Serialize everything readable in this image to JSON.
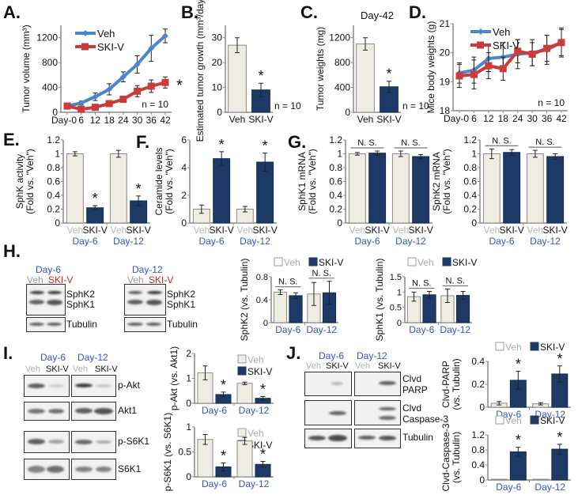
{
  "panels": {
    "A": "A.",
    "B": "B.",
    "C": "C.",
    "D": "D.",
    "E": "E.",
    "F": "F.",
    "G": "G.",
    "H": "H.",
    "I": "I.",
    "J": "J."
  },
  "colors": {
    "veh_fill": "#efede1",
    "veh_stroke": "#8a8a8a",
    "ski_fill": "#1d3a67",
    "veh_line": "#4a86c8",
    "ski_line": "#cc3b3b",
    "day_label": "#3355bb"
  },
  "blots": {
    "H": {
      "day6": "Day-6",
      "day12": "Day-12",
      "veh": "Veh",
      "ski": "SKI-V",
      "proteins": [
        "SphK2",
        "SphK1"
      ],
      "loading": "Tubulin"
    },
    "I": {
      "day6": "Day-6",
      "day12": "Day-12",
      "veh": "Veh",
      "ski": "SKI-V",
      "proteins": [
        "p-Akt",
        "Akt1",
        "p-S6K1",
        "S6K1"
      ]
    },
    "J": {
      "day6": "Day-6",
      "day12": "Day-12",
      "veh": "Veh",
      "ski": "SKI-V",
      "proteins": [
        "Clvd\nPARP",
        "Clvd\nCaspase-3",
        "Tubulin"
      ]
    }
  },
  "chart_data": [
    {
      "id": "A",
      "type": "line",
      "ylabel": "Tumor volume (mm³)",
      "x": [
        "Day-0",
        "6",
        "12",
        "18",
        "24",
        "30",
        "36",
        "42"
      ],
      "ylim": [
        0,
        1400
      ],
      "yticks": [
        0,
        400,
        800,
        1200
      ],
      "series": [
        {
          "name": "Veh",
          "values": [
            100,
            150,
            250,
            370,
            570,
            770,
            1030,
            1230
          ],
          "errors": [
            20,
            30,
            60,
            90,
            80,
            140,
            210,
            110
          ]
        },
        {
          "name": "SKI-V",
          "values": [
            100,
            50,
            80,
            140,
            210,
            340,
            420,
            480
          ],
          "errors": [
            20,
            30,
            40,
            40,
            50,
            90,
            100,
            90
          ]
        }
      ],
      "legend": "top-left",
      "annotation": "n = 10",
      "significance": "*"
    },
    {
      "id": "B",
      "type": "bar",
      "ylabel": "Estimated tumor growth (mm³/day)",
      "categories": [
        "Veh",
        "SKI-V"
      ],
      "values": [
        27,
        9
      ],
      "errors": [
        3,
        2.7
      ],
      "significance": [
        "",
        "*"
      ],
      "ylim": [
        0,
        35
      ],
      "yticks": [
        0,
        10,
        20,
        30
      ],
      "annotation": "n = 10"
    },
    {
      "id": "C",
      "type": "bar",
      "title": "Day-42",
      "ylabel": "Tumor weights (mg)",
      "categories": [
        "Veh",
        "SKI-V"
      ],
      "values": [
        1100,
        410
      ],
      "errors": [
        100,
        90
      ],
      "significance": [
        "",
        "*"
      ],
      "ylim": [
        0,
        1400
      ],
      "yticks": [
        0,
        400,
        800,
        1200
      ],
      "annotation": "n = 10"
    },
    {
      "id": "D",
      "type": "line",
      "ylabel": "Mice body weights (g)",
      "x": [
        "Day-0",
        "6",
        "12",
        "18",
        "24",
        "30",
        "36",
        "42"
      ],
      "ylim": [
        18,
        21
      ],
      "yticks": [
        18,
        19,
        20,
        21
      ],
      "series": [
        {
          "name": "Veh",
          "values": [
            19.3,
            19.4,
            19.8,
            19.85,
            19.95,
            20.0,
            20.1,
            20.35
          ],
          "errors": [
            0.35,
            0.45,
            0.45,
            0.5,
            0.5,
            0.45,
            0.5,
            0.5
          ]
        },
        {
          "name": "SKI-V",
          "values": [
            19.2,
            19.25,
            19.55,
            19.45,
            20.05,
            19.95,
            20.15,
            20.35
          ],
          "errors": [
            0.4,
            0.5,
            0.45,
            0.4,
            0.4,
            0.4,
            0.45,
            0.45
          ]
        }
      ],
      "legend": "top-left",
      "annotation": "n = 10"
    },
    {
      "id": "E",
      "type": "bar",
      "ylabel": "SphK activity\n(Fold vs. \"Veh\")",
      "groups": [
        "Day-6",
        "Day-12"
      ],
      "tick_labels": [
        "Veh",
        "SKI-V",
        "Veh",
        "SKI-V"
      ],
      "ylim": [
        0,
        1.2
      ],
      "yticks": [
        0,
        0.2,
        0.4,
        0.6,
        0.8,
        1,
        1.2
      ],
      "series": [
        {
          "name": "Veh",
          "values": [
            1.0,
            1.0
          ],
          "errors": [
            0.03,
            0.05
          ]
        },
        {
          "name": "SKI-V",
          "values": [
            0.22,
            0.32
          ],
          "errors": [
            0.03,
            0.07
          ]
        }
      ],
      "significance": [
        "",
        "*",
        "",
        "*"
      ]
    },
    {
      "id": "F",
      "type": "bar",
      "ylabel": "Ceramide levels\n(Fold vs. \"Veh\")",
      "groups": [
        "Day-6",
        "Day-12"
      ],
      "tick_labels": [
        "Veh",
        "SKI-V",
        "Veh",
        "SKI-V"
      ],
      "ylim": [
        0,
        6
      ],
      "yticks": [
        0,
        2,
        4,
        6
      ],
      "series": [
        {
          "name": "Veh",
          "values": [
            1.0,
            1.0
          ],
          "errors": [
            0.3,
            0.2
          ]
        },
        {
          "name": "SKI-V",
          "values": [
            4.65,
            4.4
          ],
          "errors": [
            0.5,
            0.65
          ]
        }
      ],
      "significance": [
        "",
        "*",
        "",
        "*"
      ]
    },
    {
      "id": "G1",
      "type": "bar",
      "ylabel": "SphK1 mRNA\n(Fold vs. \"Veh\")",
      "groups": [
        "Day-6",
        "Day-12"
      ],
      "tick_labels": [
        "Veh",
        "SKI-V",
        "Veh",
        "SKI-V"
      ],
      "ylim": [
        0,
        1.2
      ],
      "yticks": [
        0,
        0.2,
        0.4,
        0.6,
        0.8,
        1,
        1.2
      ],
      "series": [
        {
          "name": "Veh",
          "values": [
            1.0,
            1.0
          ],
          "errors": [
            0.02,
            0.04
          ]
        },
        {
          "name": "SKI-V",
          "values": [
            1.01,
            0.96
          ],
          "errors": [
            0.03,
            0.03
          ]
        }
      ],
      "group_annotations": [
        "N. S.",
        "N. S."
      ]
    },
    {
      "id": "G2",
      "type": "bar",
      "ylabel": "SphK2 mRNA\n(Fold vs. \"Veh\")",
      "groups": [
        "Day-6",
        "Day-12"
      ],
      "tick_labels": [
        "Veh",
        "SKI-V",
        "Veh",
        "SKI-V"
      ],
      "ylim": [
        0,
        1.2
      ],
      "yticks": [
        0,
        0.2,
        0.4,
        0.6,
        0.8,
        1,
        1.2
      ],
      "series": [
        {
          "name": "Veh",
          "values": [
            1.0,
            1.0
          ],
          "errors": [
            0.07,
            0.05
          ]
        },
        {
          "name": "SKI-V",
          "values": [
            1.02,
            0.96
          ],
          "errors": [
            0.04,
            0.04
          ]
        }
      ],
      "group_annotations": [
        "N. S.",
        "N. S."
      ]
    },
    {
      "id": "H1",
      "type": "bar",
      "ylabel": "SphK2 (vs. Tubulin)",
      "groups": [
        "Day-6",
        "Day-12"
      ],
      "ylim": [
        0,
        0.8
      ],
      "yticks": [
        0,
        0.4,
        0.8
      ],
      "legend": "top",
      "series": [
        {
          "name": "Veh",
          "values": [
            0.53,
            0.5
          ],
          "errors": [
            0.04,
            0.2
          ]
        },
        {
          "name": "SKI-V",
          "values": [
            0.47,
            0.52
          ],
          "errors": [
            0.05,
            0.2
          ]
        }
      ],
      "group_annotations": [
        "N. S.",
        "N. S."
      ]
    },
    {
      "id": "H2",
      "type": "bar",
      "ylabel": "SphK1 (vs. Tubulin)",
      "groups": [
        "Day-6",
        "Day-12"
      ],
      "ylim": [
        0,
        1.5
      ],
      "yticks": [
        0,
        0.5,
        1,
        1.5
      ],
      "legend": "top",
      "series": [
        {
          "name": "Veh",
          "values": [
            0.85,
            0.88
          ],
          "errors": [
            0.15,
            0.22
          ]
        },
        {
          "name": "SKI-V",
          "values": [
            0.91,
            0.89
          ],
          "errors": [
            0.11,
            0.13
          ]
        }
      ],
      "group_annotations": [
        "N. S.",
        "N. S."
      ]
    },
    {
      "id": "I1",
      "type": "bar",
      "ylabel": "p-Akt (vs. Akt1)",
      "groups": [
        "Day-6",
        "Day-12"
      ],
      "ylim": [
        0,
        2
      ],
      "yticks": [
        0,
        1,
        2
      ],
      "legend": "top-right",
      "series": [
        {
          "name": "Veh",
          "values": [
            1.22,
            0.8
          ],
          "errors": [
            0.28,
            0.05
          ]
        },
        {
          "name": "SKI-V",
          "values": [
            0.35,
            0.2
          ],
          "errors": [
            0.1,
            0.07
          ]
        }
      ],
      "significance": [
        "",
        "*",
        "",
        "*"
      ]
    },
    {
      "id": "I2",
      "type": "bar",
      "ylabel": "p-S6K1 (vs. S6K1)",
      "groups": [
        "Day-6",
        "Day-12"
      ],
      "ylim": [
        0,
        1
      ],
      "yticks": [
        0,
        0.5,
        1
      ],
      "legend": "top-right",
      "series": [
        {
          "name": "Veh",
          "values": [
            0.75,
            0.72
          ],
          "errors": [
            0.1,
            0.07
          ]
        },
        {
          "name": "SKI-V",
          "values": [
            0.2,
            0.25
          ],
          "errors": [
            0.08,
            0.06
          ]
        }
      ],
      "significance": [
        "",
        "*",
        "",
        "*"
      ]
    },
    {
      "id": "J1",
      "type": "bar",
      "ylabel": "Clvd-PARP\n(vs. Tubulin)",
      "groups": [
        "Day-6",
        "Day-12"
      ],
      "ylim": [
        0,
        0.4
      ],
      "yticks": [
        0,
        0.2,
        0.4
      ],
      "legend": "top",
      "series": [
        {
          "name": "Veh",
          "values": [
            0.035,
            0.03
          ],
          "errors": [
            0.015,
            0.01
          ]
        },
        {
          "name": "SKI-V",
          "values": [
            0.235,
            0.29
          ],
          "errors": [
            0.08,
            0.07
          ]
        }
      ],
      "significance": [
        "",
        "*",
        "",
        "*"
      ]
    },
    {
      "id": "J2",
      "type": "bar",
      "ylabel": "Clvd-Caspase-3\n(vs. Tubulin)",
      "groups": [
        "Day-6",
        "Day-12"
      ],
      "ylim": [
        0,
        1.2
      ],
      "yticks": [
        0,
        0.4,
        0.8,
        1.2
      ],
      "legend": "top",
      "series": [
        {
          "name": "Veh",
          "values": [
            0.02,
            0.02
          ],
          "errors": [
            0,
            0
          ]
        },
        {
          "name": "SKI-V",
          "values": [
            0.75,
            0.82
          ],
          "errors": [
            0.12,
            0.13
          ]
        }
      ],
      "significance": [
        "",
        "*",
        "",
        "*"
      ]
    }
  ]
}
